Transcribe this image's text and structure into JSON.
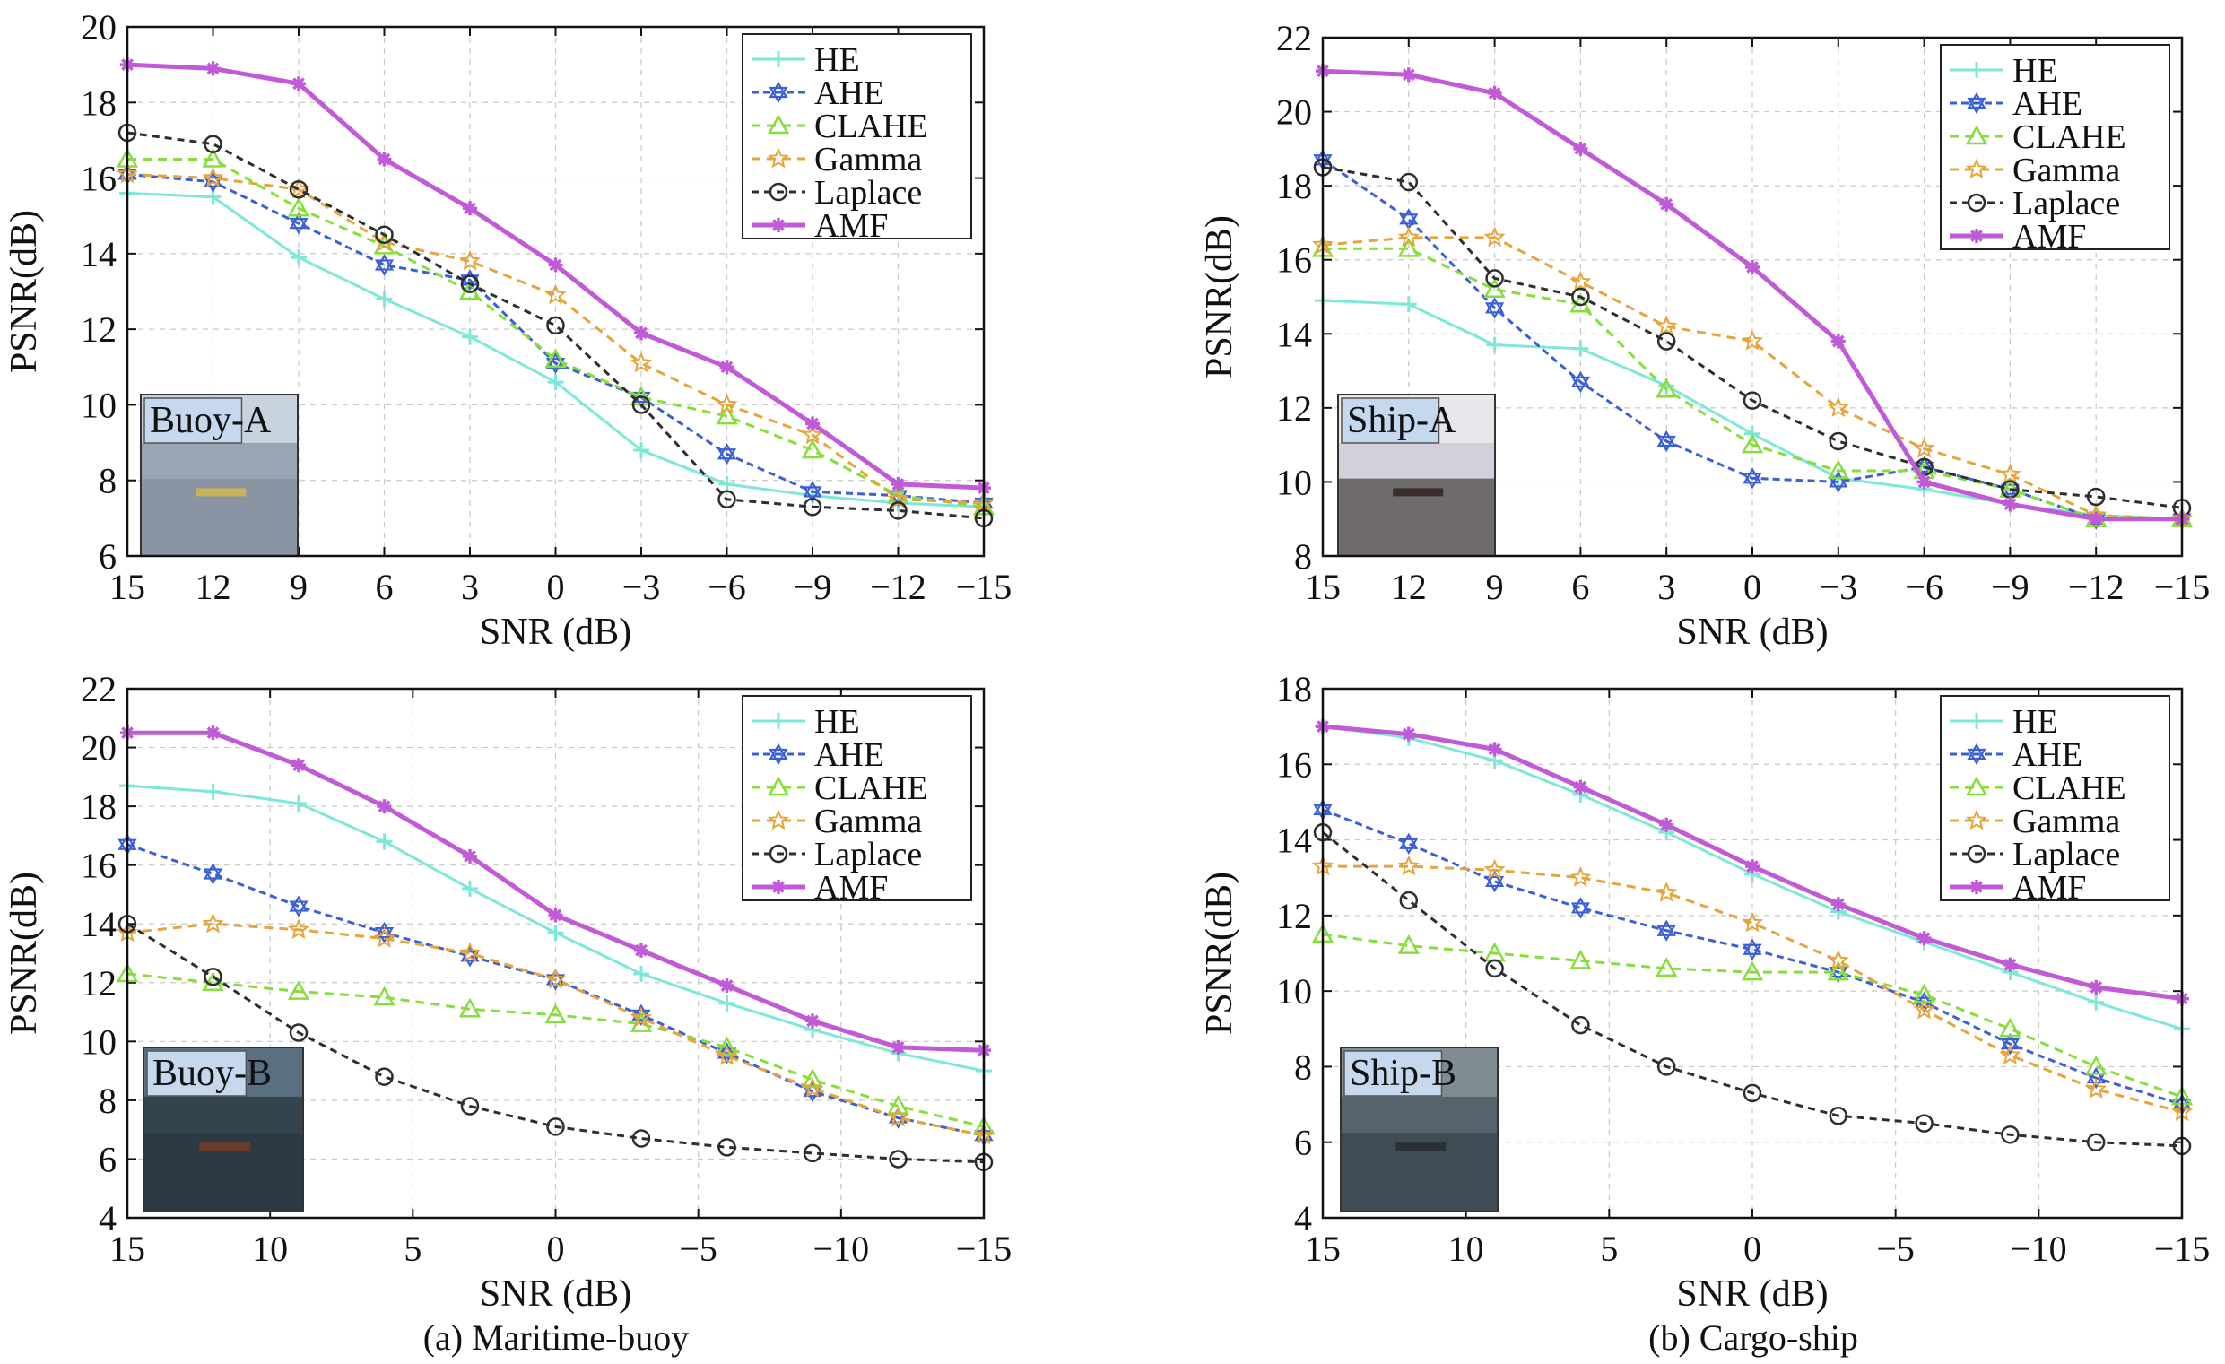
{
  "colors": {
    "HE": "#7ee8d8",
    "AHE": "#3b5fd6",
    "CLAHE": "#86de3a",
    "Gamma": "#e6a43c",
    "Laplace": "#2e2e2e",
    "AMF": "#c05ad6"
  },
  "series_styles": [
    {
      "name": "HE",
      "marker": "plus",
      "dash": "none",
      "width": 3
    },
    {
      "name": "AHE",
      "marker": "star6",
      "dash": "8,5",
      "width": 3
    },
    {
      "name": "CLAHE",
      "marker": "triangle",
      "dash": "10,7",
      "width": 3
    },
    {
      "name": "Gamma",
      "marker": "star5",
      "dash": "10,7",
      "width": 3
    },
    {
      "name": "Laplace",
      "marker": "circle",
      "dash": "8,6",
      "width": 3
    },
    {
      "name": "AMF",
      "marker": "asterisk",
      "dash": "none",
      "width": 5
    }
  ],
  "captions": {
    "a": "(a) Maritime-buoy",
    "b": "(b) Cargo-ship"
  },
  "chart_data": [
    {
      "type": "line",
      "inset_label": "Buoy-A",
      "xlabel": "SNR (dB)",
      "ylabel": "PSNR(dB)",
      "x": [
        15,
        12,
        9,
        6,
        3,
        0,
        -3,
        -6,
        -9,
        -12,
        -15
      ],
      "xticks": [
        15,
        12,
        9,
        6,
        3,
        0,
        -3,
        -6,
        -9,
        -12,
        -15
      ],
      "xlim": [
        15,
        -15
      ],
      "ylim": [
        6,
        20
      ],
      "yticks": [
        6,
        8,
        10,
        12,
        14,
        16,
        18,
        20
      ],
      "grid": true,
      "legend_position": "top-right",
      "series": [
        {
          "name": "HE",
          "values": [
            15.6,
            15.5,
            13.9,
            12.8,
            11.8,
            10.6,
            8.8,
            7.9,
            7.6,
            7.4,
            7.3
          ]
        },
        {
          "name": "AHE",
          "values": [
            16.1,
            15.9,
            14.8,
            13.7,
            13.3,
            11.1,
            10.2,
            8.7,
            7.7,
            7.6,
            7.4
          ]
        },
        {
          "name": "CLAHE",
          "values": [
            16.5,
            16.5,
            15.2,
            14.2,
            13.0,
            11.2,
            10.2,
            9.7,
            8.8,
            7.6,
            7.3
          ]
        },
        {
          "name": "Gamma",
          "values": [
            16.1,
            16.0,
            15.7,
            14.3,
            13.8,
            12.9,
            11.1,
            10.0,
            9.2,
            7.5,
            7.4
          ]
        },
        {
          "name": "Laplace",
          "values": [
            17.2,
            16.9,
            15.7,
            14.5,
            13.2,
            12.1,
            10.0,
            7.5,
            7.3,
            7.2,
            7.0
          ]
        },
        {
          "name": "AMF",
          "values": [
            19.0,
            18.9,
            18.5,
            16.5,
            15.2,
            13.7,
            11.9,
            11.0,
            9.5,
            7.9,
            7.8
          ]
        }
      ]
    },
    {
      "type": "line",
      "inset_label": "Ship-A",
      "xlabel": "SNR (dB)",
      "ylabel": "PSNR(dB)",
      "x": [
        15,
        12,
        9,
        6,
        3,
        0,
        -3,
        -6,
        -9,
        -12,
        -15
      ],
      "xticks": [
        15,
        12,
        9,
        6,
        3,
        0,
        -3,
        -6,
        -9,
        -12,
        -15
      ],
      "xlim": [
        15,
        -15
      ],
      "ylim": [
        8,
        22
      ],
      "yticks": [
        8,
        10,
        12,
        14,
        16,
        18,
        20,
        22
      ],
      "grid": true,
      "legend_position": "top-right",
      "series": [
        {
          "name": "HE",
          "values": [
            14.9,
            14.8,
            13.7,
            13.6,
            12.6,
            11.3,
            10.1,
            9.8,
            9.4,
            9.1,
            9.0
          ]
        },
        {
          "name": "AHE",
          "values": [
            18.7,
            17.1,
            14.7,
            12.7,
            11.1,
            10.1,
            10.0,
            10.4,
            9.8,
            9.0,
            9.0
          ]
        },
        {
          "name": "CLAHE",
          "values": [
            16.3,
            16.3,
            15.2,
            14.8,
            12.5,
            11.0,
            10.3,
            10.3,
            9.8,
            9.0,
            9.0
          ]
        },
        {
          "name": "Gamma",
          "values": [
            16.4,
            16.6,
            16.6,
            15.4,
            14.2,
            13.8,
            12.0,
            10.9,
            10.2,
            9.1,
            9.0
          ]
        },
        {
          "name": "Laplace",
          "values": [
            18.5,
            18.1,
            15.5,
            15.0,
            13.8,
            12.2,
            11.1,
            10.4,
            9.8,
            9.6,
            9.3
          ]
        },
        {
          "name": "AMF",
          "values": [
            21.1,
            21.0,
            20.5,
            19.0,
            17.5,
            15.8,
            13.8,
            10.0,
            9.4,
            9.0,
            9.0
          ]
        }
      ]
    },
    {
      "type": "line",
      "inset_label": "Buoy-B",
      "xlabel": "SNR (dB)",
      "ylabel": "PSNR(dB)",
      "x": [
        15,
        12,
        9,
        6,
        3,
        0,
        -3,
        -6,
        -9,
        -12,
        -15
      ],
      "xticks": [
        15,
        10,
        5,
        0,
        -5,
        -10,
        -15
      ],
      "xlim": [
        15,
        -15
      ],
      "ylim": [
        4,
        22
      ],
      "yticks": [
        4,
        6,
        8,
        10,
        12,
        14,
        16,
        18,
        20,
        22
      ],
      "grid": true,
      "legend_position": "top-right",
      "series": [
        {
          "name": "HE",
          "values": [
            18.7,
            18.5,
            18.1,
            16.8,
            15.2,
            13.7,
            12.3,
            11.3,
            10.4,
            9.6,
            9.0
          ]
        },
        {
          "name": "AHE",
          "values": [
            16.7,
            15.7,
            14.6,
            13.7,
            12.9,
            12.1,
            10.9,
            9.6,
            8.3,
            7.4,
            6.8
          ]
        },
        {
          "name": "CLAHE",
          "values": [
            12.3,
            12.0,
            11.7,
            11.5,
            11.1,
            10.9,
            10.6,
            9.8,
            8.7,
            7.8,
            7.1
          ]
        },
        {
          "name": "Gamma",
          "values": [
            13.7,
            14.0,
            13.8,
            13.5,
            13.0,
            12.1,
            10.8,
            9.5,
            8.4,
            7.4,
            6.8
          ]
        },
        {
          "name": "Laplace",
          "values": [
            14.0,
            12.2,
            10.3,
            8.8,
            7.8,
            7.1,
            6.7,
            6.4,
            6.2,
            6.0,
            5.9
          ]
        },
        {
          "name": "AMF",
          "values": [
            20.5,
            20.5,
            19.4,
            18.0,
            16.3,
            14.3,
            13.1,
            11.9,
            10.7,
            9.8,
            9.7
          ]
        }
      ]
    },
    {
      "type": "line",
      "inset_label": "Ship-B",
      "xlabel": "SNR (dB)",
      "ylabel": "PSNR(dB)",
      "x": [
        15,
        12,
        9,
        6,
        3,
        0,
        -3,
        -6,
        -9,
        -12,
        -15
      ],
      "xticks": [
        15,
        10,
        5,
        0,
        -5,
        -10,
        -15
      ],
      "xlim": [
        15,
        -15
      ],
      "ylim": [
        4,
        18
      ],
      "yticks": [
        4,
        6,
        8,
        10,
        12,
        14,
        16,
        18
      ],
      "grid": true,
      "legend_position": "top-right",
      "series": [
        {
          "name": "HE",
          "values": [
            17.0,
            16.7,
            16.1,
            15.2,
            14.2,
            13.1,
            12.1,
            11.3,
            10.5,
            9.7,
            9.0
          ]
        },
        {
          "name": "AHE",
          "values": [
            14.8,
            13.9,
            12.9,
            12.2,
            11.6,
            11.1,
            10.5,
            9.7,
            8.6,
            7.7,
            7.0
          ]
        },
        {
          "name": "CLAHE",
          "values": [
            11.5,
            11.2,
            11.0,
            10.8,
            10.6,
            10.5,
            10.5,
            9.9,
            9.0,
            8.0,
            7.2
          ]
        },
        {
          "name": "Gamma",
          "values": [
            13.3,
            13.3,
            13.2,
            13.0,
            12.6,
            11.8,
            10.8,
            9.5,
            8.3,
            7.4,
            6.8
          ]
        },
        {
          "name": "Laplace",
          "values": [
            14.2,
            12.4,
            10.6,
            9.1,
            8.0,
            7.3,
            6.7,
            6.5,
            6.2,
            6.0,
            5.9
          ]
        },
        {
          "name": "AMF",
          "values": [
            17.0,
            16.8,
            16.4,
            15.4,
            14.4,
            13.3,
            12.3,
            11.4,
            10.7,
            10.1,
            9.8
          ]
        }
      ]
    }
  ]
}
